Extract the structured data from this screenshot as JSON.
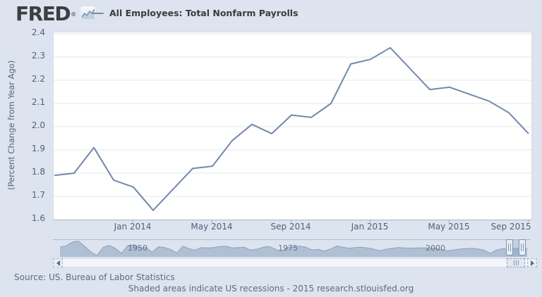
{
  "header": {
    "logo_text": "FRED",
    "registered_mark": "®",
    "series_label": "All Employees: Total Nonfarm Payrolls"
  },
  "chart_data": {
    "type": "line",
    "title": "All Employees: Total Nonfarm Payrolls",
    "ylabel": "(Percent Change from Year Ago)",
    "ylim": [
      1.6,
      2.4
    ],
    "y_ticks": [
      "2.4",
      "2.3",
      "2.2",
      "2.1",
      "2.0",
      "1.9",
      "1.8",
      "1.7",
      "1.6"
    ],
    "x": [
      "Sep 2013",
      "Oct 2013",
      "Nov 2013",
      "Dec 2013",
      "Jan 2014",
      "Feb 2014",
      "Mar 2014",
      "Apr 2014",
      "May 2014",
      "Jun 2014",
      "Jul 2014",
      "Aug 2014",
      "Sep 2014",
      "Oct 2014",
      "Nov 2014",
      "Dec 2014",
      "Jan 2015",
      "Feb 2015",
      "Mar 2015",
      "Apr 2015",
      "May 2015",
      "Jun 2015",
      "Jul 2015",
      "Aug 2015",
      "Sep 2015"
    ],
    "values": [
      1.79,
      1.8,
      1.91,
      1.77,
      1.74,
      1.64,
      1.73,
      1.82,
      1.83,
      1.94,
      2.01,
      1.97,
      2.05,
      2.04,
      2.1,
      2.27,
      2.29,
      2.34,
      2.25,
      2.16,
      2.17,
      2.14,
      2.11,
      2.06,
      1.97
    ],
    "x_ticks": [
      {
        "label": "Jan 2014",
        "index": 4
      },
      {
        "label": "May 2014",
        "index": 8
      },
      {
        "label": "Sep 2014",
        "index": 12
      },
      {
        "label": "Jan 2015",
        "index": 16
      },
      {
        "label": "May 2015",
        "index": 20
      },
      {
        "label": "Sep 2015",
        "index": 24
      }
    ],
    "grid": true,
    "legend_position": "top"
  },
  "navigator": {
    "type": "area",
    "x_range_years": [
      1939,
      2015
    ],
    "value_range": [
      -8,
      12.5
    ],
    "year_labels": [
      {
        "text": "1950",
        "x": 120
      },
      {
        "text": "1975",
        "x": 333
      },
      {
        "text": "2000",
        "x": 542
      }
    ],
    "values": [
      3.5,
      5.5,
      10.5,
      12.0,
      5.0,
      -3.0,
      -8.0,
      3.0,
      6.0,
      2.0,
      -5.0,
      5.5,
      7.0,
      2.5,
      3.0,
      -3.5,
      4.0,
      3.0,
      0.5,
      -4.5,
      5.0,
      1.5,
      -0.5,
      3.0,
      2.5,
      3.0,
      4.5,
      5.0,
      2.5,
      3.0,
      3.5,
      -0.5,
      0.5,
      3.5,
      4.5,
      1.0,
      -2.5,
      3.0,
      4.0,
      5.0,
      3.5,
      -0.5,
      0.5,
      -2.0,
      1.0,
      5.0,
      3.5,
      2.0,
      3.0,
      3.5,
      2.5,
      1.0,
      -1.5,
      0.5,
      2.0,
      3.0,
      2.5,
      2.0,
      2.5,
      2.5,
      2.5,
      2.0,
      0.0,
      -1.5,
      -0.5,
      1.0,
      1.5,
      2.0,
      1.0,
      -0.5,
      -5.0,
      -0.5,
      1.5,
      1.7,
      1.7,
      1.9,
      2.1
    ]
  },
  "footer": {
    "source": "Source: US. Bureau of Labor Statistics",
    "note": "Shaded areas indicate US recessions - 2015 research.stlouisfed.org"
  },
  "colors": {
    "background": "#dde4ef",
    "plot_background": "#ffffff",
    "grid": "#e5e7ea",
    "line": "#7289a8",
    "axis_text": "#51617b",
    "axis_line": "#9aa7ba",
    "nav_fill": "#afc0d4",
    "nav_line": "#8ba1bd"
  }
}
